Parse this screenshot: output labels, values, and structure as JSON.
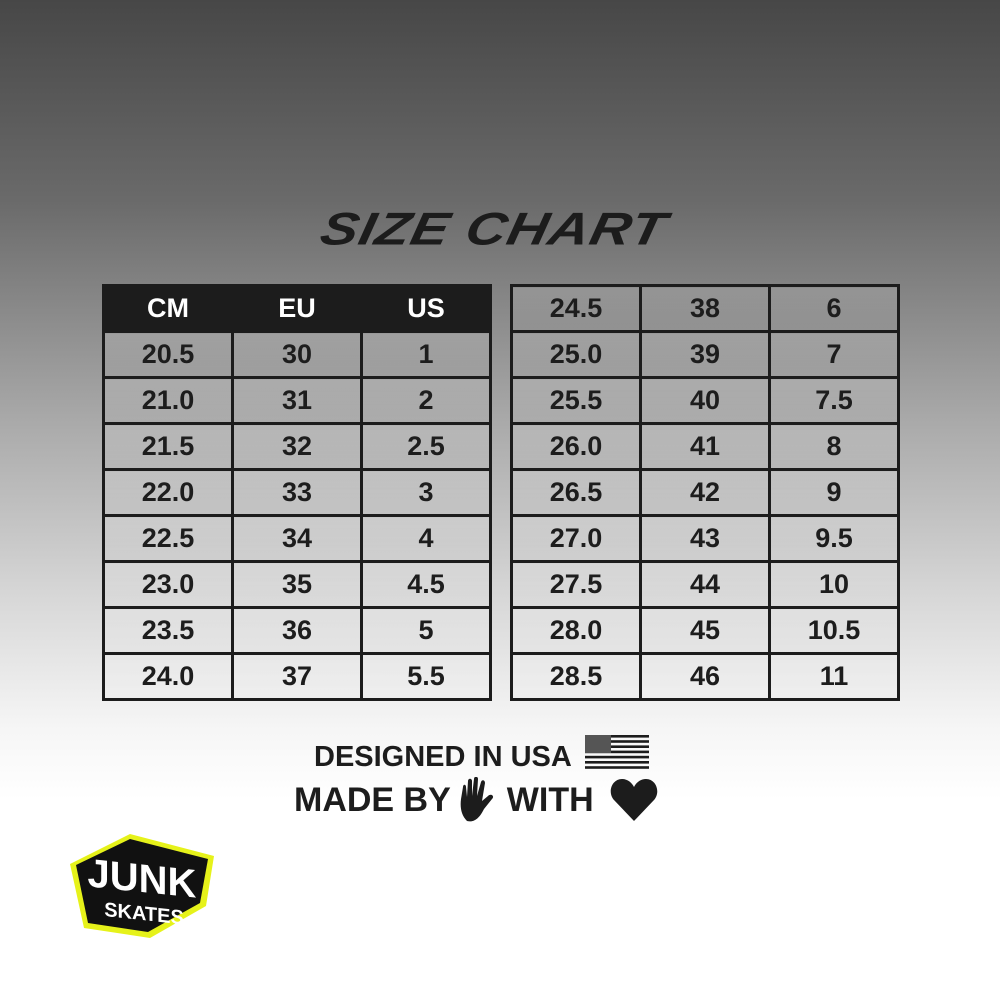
{
  "title": "SIZE CHART",
  "headers": [
    "CM",
    "EU",
    "US"
  ],
  "left_rows": [
    [
      "20.5",
      "30",
      "1"
    ],
    [
      "21.0",
      "31",
      "2"
    ],
    [
      "21.5",
      "32",
      "2.5"
    ],
    [
      "22.0",
      "33",
      "3"
    ],
    [
      "22.5",
      "34",
      "4"
    ],
    [
      "23.0",
      "35",
      "4.5"
    ],
    [
      "23.5",
      "36",
      "5"
    ],
    [
      "24.0",
      "37",
      "5.5"
    ]
  ],
  "right_rows": [
    [
      "24.5",
      "38",
      "6"
    ],
    [
      "25.0",
      "39",
      "7"
    ],
    [
      "25.5",
      "40",
      "7.5"
    ],
    [
      "26.0",
      "41",
      "8"
    ],
    [
      "26.5",
      "42",
      "9"
    ],
    [
      "27.0",
      "43",
      "9.5"
    ],
    [
      "27.5",
      "44",
      "10"
    ],
    [
      "28.0",
      "45",
      "10.5"
    ],
    [
      "28.5",
      "46",
      "11"
    ]
  ],
  "footer": {
    "designed": "DESIGNED IN USA",
    "made_by": "MADE BY",
    "with": "WITH",
    "icons": [
      "us-flag-icon",
      "hand-icon",
      "heart-icon"
    ]
  },
  "logo": {
    "text_top": "JUNK",
    "text_bottom": "SKATES",
    "accent": "#e6f21a"
  }
}
